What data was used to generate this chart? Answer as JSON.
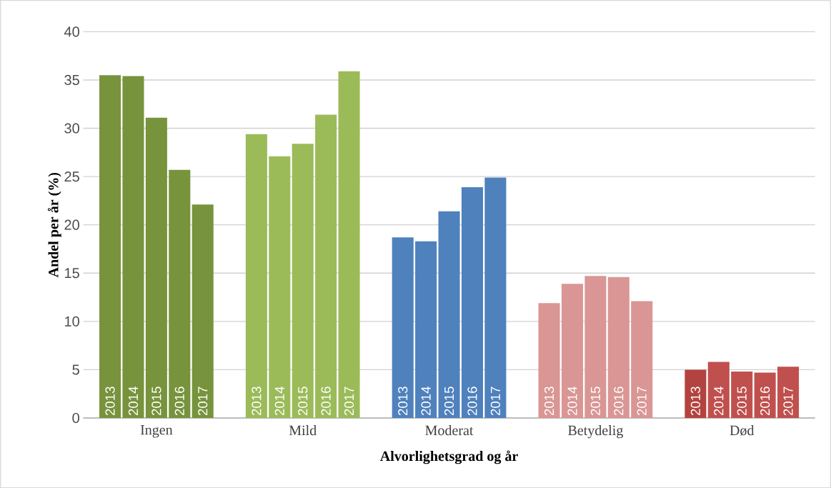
{
  "chart_data": {
    "type": "bar",
    "xlabel": "Alvorlighetsgrad og år",
    "ylabel": "Andel per år (%)",
    "categories": [
      "Ingen",
      "Mild",
      "Moderat",
      "Betydelig",
      "Død"
    ],
    "series": [
      {
        "name": "2013",
        "colors": [
          "#77933c",
          "#9bbb59",
          "#4f81bd",
          "#d99694",
          "#b3433f"
        ],
        "values": [
          35.5,
          29.4,
          18.7,
          11.9,
          5.0
        ]
      },
      {
        "name": "2014",
        "colors": [
          "#77933c",
          "#9bbb59",
          "#4f81bd",
          "#d99694",
          "#c0504d"
        ],
        "values": [
          35.4,
          27.1,
          18.3,
          13.9,
          5.8
        ]
      },
      {
        "name": "2015",
        "colors": [
          "#77933c",
          "#9bbb59",
          "#4f81bd",
          "#d99694",
          "#c0504d"
        ],
        "values": [
          31.1,
          28.4,
          21.4,
          14.7,
          4.8
        ]
      },
      {
        "name": "2016",
        "colors": [
          "#77933c",
          "#9bbb59",
          "#4f81bd",
          "#d99694",
          "#c0504d"
        ],
        "values": [
          25.7,
          31.4,
          23.9,
          14.6,
          4.7
        ]
      },
      {
        "name": "2017",
        "colors": [
          "#77933c",
          "#9bbb59",
          "#4f81bd",
          "#d99694",
          "#c0504d"
        ],
        "values": [
          22.1,
          35.9,
          24.9,
          12.1,
          5.3
        ]
      }
    ],
    "ylim": [
      0,
      40
    ],
    "yticks": [
      0,
      5,
      10,
      15,
      20,
      25,
      30,
      35,
      40
    ],
    "grid": "y"
  }
}
